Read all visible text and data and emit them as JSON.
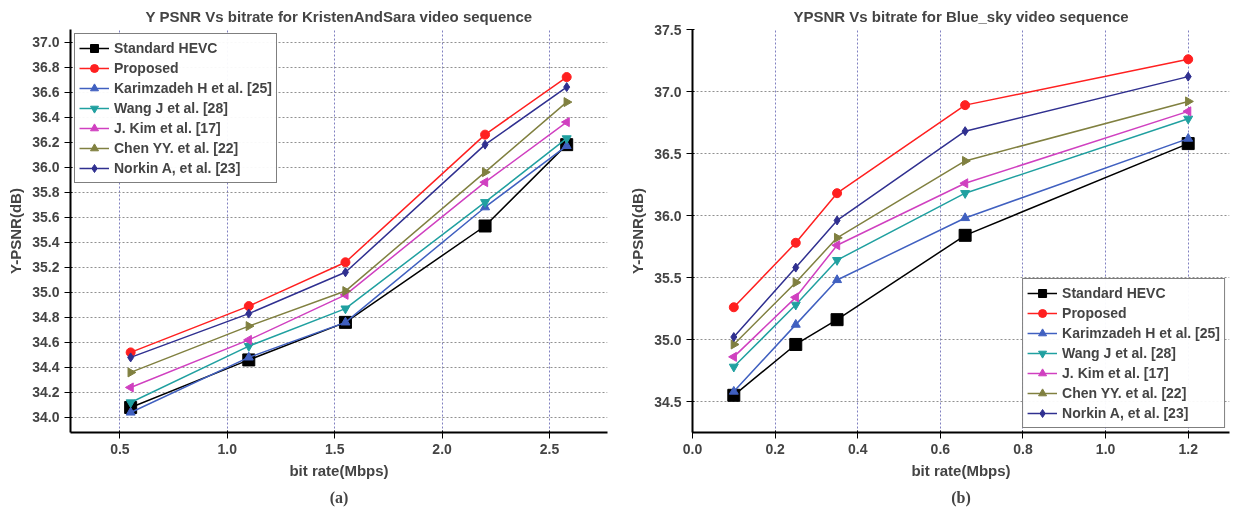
{
  "chart_data": [
    {
      "type": "line",
      "title": "Y PSNR Vs bitrate for KristenAndSara video sequence",
      "xlabel": "bit rate(Mbps)",
      "ylabel": "Y-PSNR(dB)",
      "annotations": [
        "(a)"
      ],
      "x": [
        0.55,
        1.1,
        1.55,
        2.2,
        2.58
      ],
      "xlim": [
        0.27,
        2.77
      ],
      "xticks": [
        0.5,
        {
          "value": 1,
          "label": "1.0"
        },
        1.5,
        {
          "value": 2,
          "label": "2.0"
        },
        2.5
      ],
      "ylim": [
        33.88,
        37.1
      ],
      "yticks": [
        {
          "value": 34,
          "label": "34.0"
        },
        34.2,
        34.4,
        34.6,
        34.8,
        {
          "value": 35,
          "label": "35.0"
        },
        35.2,
        35.4,
        35.6,
        35.8,
        {
          "value": 36,
          "label": "36.0"
        },
        36.2,
        36.4,
        36.6,
        36.8,
        {
          "value": 37,
          "label": "37.0"
        }
      ],
      "grid": true,
      "legend": "top left",
      "line_style": "solid",
      "series": [
        {
          "name": "Standard HEVC",
          "color": "#000000",
          "marker": "square",
          "values": [
            34.08,
            34.46,
            34.76,
            35.53,
            36.18
          ]
        },
        {
          "name": "Proposed",
          "color": "#ff2020",
          "marker": "circle",
          "values": [
            34.52,
            34.89,
            35.24,
            36.26,
            36.72
          ]
        },
        {
          "name": "Karimzadeh H et al. [25]",
          "color": "#4060c0",
          "marker": "triangle",
          "values": [
            34.04,
            34.48,
            34.76,
            35.68,
            36.17
          ]
        },
        {
          "name": "Wang J et al. [28]",
          "color": "#20a0a0",
          "marker": "triangle_down",
          "values": [
            34.12,
            34.57,
            34.87,
            35.72,
            36.23
          ]
        },
        {
          "name": "J. Kim et al. [17]",
          "color": "#d040c0",
          "marker": "triangle_left",
          "values": [
            34.24,
            34.62,
            34.98,
            35.88,
            36.36
          ]
        },
        {
          "name": "Chen YY. et al. [22]",
          "color": "#808040",
          "marker": "triangle_right",
          "values": [
            34.36,
            34.73,
            35.01,
            35.96,
            36.52
          ]
        },
        {
          "name": "Norkin A, et al. [23]",
          "color": "#303090",
          "marker": "diamond",
          "values": [
            34.48,
            34.83,
            35.16,
            36.18,
            36.64
          ]
        }
      ]
    },
    {
      "type": "line",
      "title": "YPSNR Vs bitrate for Blue_sky video sequence",
      "xlabel": "bit rate(Mbps)",
      "ylabel": "Y-PSNR(dB)",
      "annotations": [
        "(b)"
      ],
      "x": [
        0.1,
        0.25,
        0.35,
        0.66,
        1.2
      ],
      "xlim": [
        0.0,
        1.3
      ],
      "xticks": [
        {
          "value": 0,
          "label": "0.0"
        },
        0.2,
        0.4,
        0.6,
        0.8,
        {
          "value": 1,
          "label": "1.0"
        },
        1.2
      ],
      "ylim": [
        34.25,
        37.5
      ],
      "yticks": [
        34.5,
        {
          "value": 35,
          "label": "35.0"
        },
        35.5,
        {
          "value": 36,
          "label": "36.0"
        },
        36.5,
        {
          "value": 37,
          "label": "37.0"
        },
        37.5
      ],
      "grid": true,
      "legend": "bottom right",
      "line_style": "solid",
      "series": [
        {
          "name": "Standard HEVC",
          "color": "#000000",
          "marker": "square",
          "values": [
            34.55,
            34.96,
            35.16,
            35.84,
            36.58
          ]
        },
        {
          "name": "Proposed",
          "color": "#ff2020",
          "marker": "circle",
          "values": [
            35.26,
            35.78,
            36.18,
            36.89,
            37.26
          ]
        },
        {
          "name": "Karimzadeh H et al. [25]",
          "color": "#4060c0",
          "marker": "triangle",
          "values": [
            34.58,
            35.12,
            35.48,
            35.98,
            36.62
          ]
        },
        {
          "name": "Wang J et al. [28]",
          "color": "#20a0a0",
          "marker": "triangle_down",
          "values": [
            34.78,
            35.28,
            35.64,
            36.18,
            36.78
          ]
        },
        {
          "name": "J. Kim et al. [17]",
          "color": "#d040c0",
          "marker": "triangle_left",
          "values": [
            34.86,
            35.34,
            35.76,
            36.26,
            36.84
          ]
        },
        {
          "name": "Chen YY. et al. [22]",
          "color": "#808040",
          "marker": "triangle_right",
          "values": [
            34.96,
            35.46,
            35.82,
            36.44,
            36.92
          ]
        },
        {
          "name": "Norkin A, et al. [23]",
          "color": "#303090",
          "marker": "diamond",
          "values": [
            35.02,
            35.58,
            35.96,
            36.68,
            37.12
          ]
        }
      ]
    }
  ]
}
